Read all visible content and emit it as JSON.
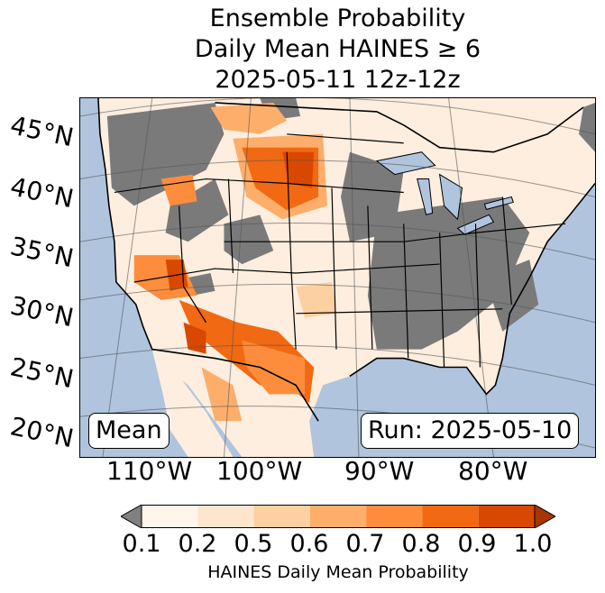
{
  "title": {
    "line1": "Ensemble Probability",
    "line2": "Daily Mean HAINES ≥ 6",
    "line3": "2025-05-11 12z-12z"
  },
  "map": {
    "lat_labels": [
      "45°N",
      "40°N",
      "35°N",
      "30°N",
      "25°N",
      "20°N"
    ],
    "lon_labels": [
      "110°W",
      "100°W",
      "90°W",
      "80°W"
    ],
    "colors": {
      "ocean": "#b0c4de",
      "no_data": "#7a7a7a",
      "low": "#fdeedf",
      "borders": "#000000"
    }
  },
  "annotations": {
    "left_box": "Mean",
    "right_box": "Run: 2025-05-10"
  },
  "colorbar": {
    "ticks": [
      "0.1",
      "0.2",
      "0.5",
      "0.6",
      "0.7",
      "0.8",
      "0.9",
      "1.0"
    ],
    "label": "HAINES Daily Mean Probability",
    "under_color": "#808080",
    "colors": [
      "#fff5eb",
      "#fee6ce",
      "#fdd0a2",
      "#fdae6b",
      "#fd8d3c",
      "#f16913",
      "#d94801"
    ],
    "over_color": "#a63603"
  }
}
